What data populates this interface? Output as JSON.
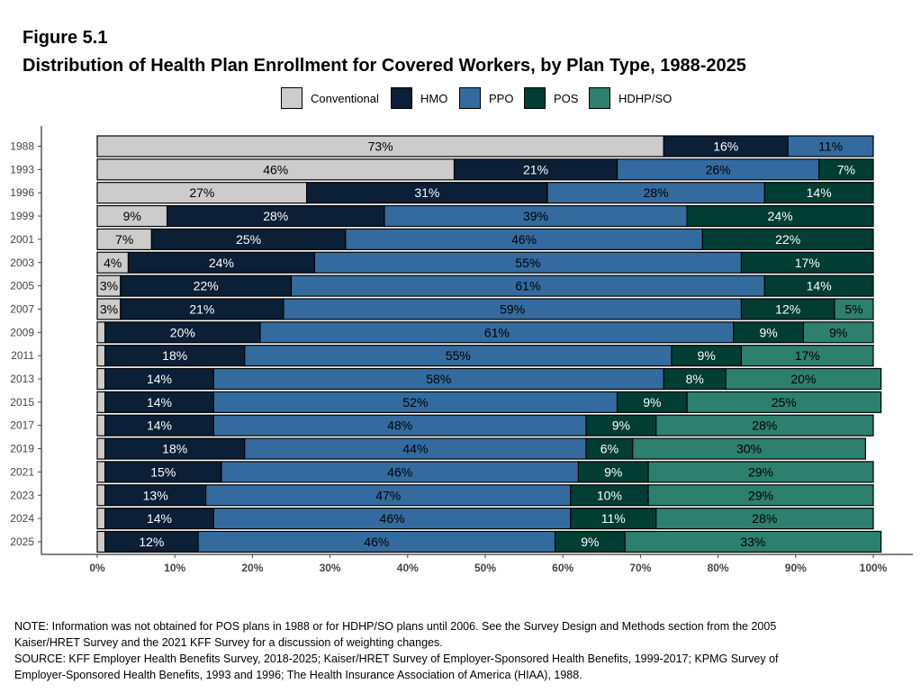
{
  "figure_label": "Figure 5.1",
  "title": "Distribution of Health Plan Enrollment for Covered Workers, by Plan Type, 1988-2025",
  "legend": [
    {
      "name": "Conventional",
      "color": "#cccccc"
    },
    {
      "name": "HMO",
      "color": "#0b1f36"
    },
    {
      "name": "PPO",
      "color": "#336b9e"
    },
    {
      "name": "POS",
      "color": "#003d33"
    },
    {
      "name": "HDHP/SO",
      "color": "#2d7f6e"
    }
  ],
  "chart_data": {
    "type": "bar",
    "orientation": "horizontal",
    "stacked": true,
    "categories": [
      "1988",
      "1993",
      "1996",
      "1999",
      "2001",
      "2003",
      "2005",
      "2007",
      "2009",
      "2011",
      "2013",
      "2015",
      "2017",
      "2019",
      "2021",
      "2023",
      "2024",
      "2025"
    ],
    "series": [
      {
        "name": "Conventional",
        "color": "#cccccc",
        "label_color": "#000000",
        "values": [
          73,
          46,
          27,
          9,
          7,
          4,
          3,
          3,
          1,
          1,
          1,
          1,
          1,
          1,
          1,
          1,
          1,
          1
        ],
        "labels": [
          "73%",
          "46%",
          "27%",
          "9%",
          "7%",
          "4%",
          "3%",
          "3%",
          "",
          "",
          "",
          "",
          "",
          "",
          "",
          "",
          "",
          ""
        ]
      },
      {
        "name": "HMO",
        "color": "#0b1f36",
        "label_color": "#ffffff",
        "values": [
          16,
          21,
          31,
          28,
          25,
          24,
          22,
          21,
          20,
          18,
          14,
          14,
          14,
          18,
          15,
          13,
          14,
          12
        ],
        "labels": [
          "16%",
          "21%",
          "31%",
          "28%",
          "25%",
          "24%",
          "22%",
          "21%",
          "20%",
          "18%",
          "14%",
          "14%",
          "14%",
          "18%",
          "15%",
          "13%",
          "14%",
          "12%"
        ]
      },
      {
        "name": "PPO",
        "color": "#336b9e",
        "label_color": "#000000",
        "values": [
          11,
          26,
          28,
          39,
          46,
          55,
          61,
          59,
          61,
          55,
          58,
          52,
          48,
          44,
          46,
          47,
          46,
          46
        ],
        "labels": [
          "11%",
          "26%",
          "28%",
          "39%",
          "46%",
          "55%",
          "61%",
          "59%",
          "61%",
          "55%",
          "58%",
          "52%",
          "48%",
          "44%",
          "46%",
          "47%",
          "46%",
          "46%"
        ]
      },
      {
        "name": "POS",
        "color": "#003d33",
        "label_color": "#ffffff",
        "values": [
          0,
          7,
          14,
          24,
          22,
          17,
          14,
          12,
          9,
          9,
          8,
          9,
          9,
          6,
          9,
          10,
          11,
          9
        ],
        "labels": [
          "",
          "7%",
          "14%",
          "24%",
          "22%",
          "17%",
          "14%",
          "12%",
          "9%",
          "9%",
          "8%",
          "9%",
          "9%",
          "6%",
          "9%",
          "10%",
          "11%",
          "9%"
        ]
      },
      {
        "name": "HDHP/SO",
        "color": "#2d7f6e",
        "label_color": "#000000",
        "values": [
          0,
          0,
          0,
          0,
          0,
          0,
          0,
          5,
          9,
          17,
          20,
          25,
          28,
          30,
          29,
          29,
          28,
          33
        ],
        "labels": [
          "",
          "",
          "",
          "",
          "",
          "",
          "",
          "5%",
          "9%",
          "17%",
          "20%",
          "25%",
          "28%",
          "30%",
          "29%",
          "29%",
          "28%",
          "33%"
        ]
      }
    ],
    "x_ticks": [
      "0%",
      "10%",
      "20%",
      "30%",
      "40%",
      "50%",
      "60%",
      "70%",
      "80%",
      "90%",
      "100%"
    ],
    "xlim": [
      0,
      100
    ],
    "xlabel": "",
    "ylabel": "",
    "grid": false,
    "legend_position": "top"
  },
  "notes": [
    "NOTE: Information was not obtained for POS plans in 1988 or for HDHP/SO plans until 2006. See the Survey Design and Methods section from the 2005",
    "Kaiser/HRET Survey and the 2021 KFF Survey for a discussion of weighting changes.",
    "SOURCE: KFF Employer Health Benefits Survey, 2018-2025; Kaiser/HRET Survey of Employer-Sponsored Health Benefits, 1999-2017; KPMG Survey of",
    "Employer-Sponsored Health Benefits, 1993 and 1996; The Health Insurance Association of America (HIAA), 1988."
  ]
}
